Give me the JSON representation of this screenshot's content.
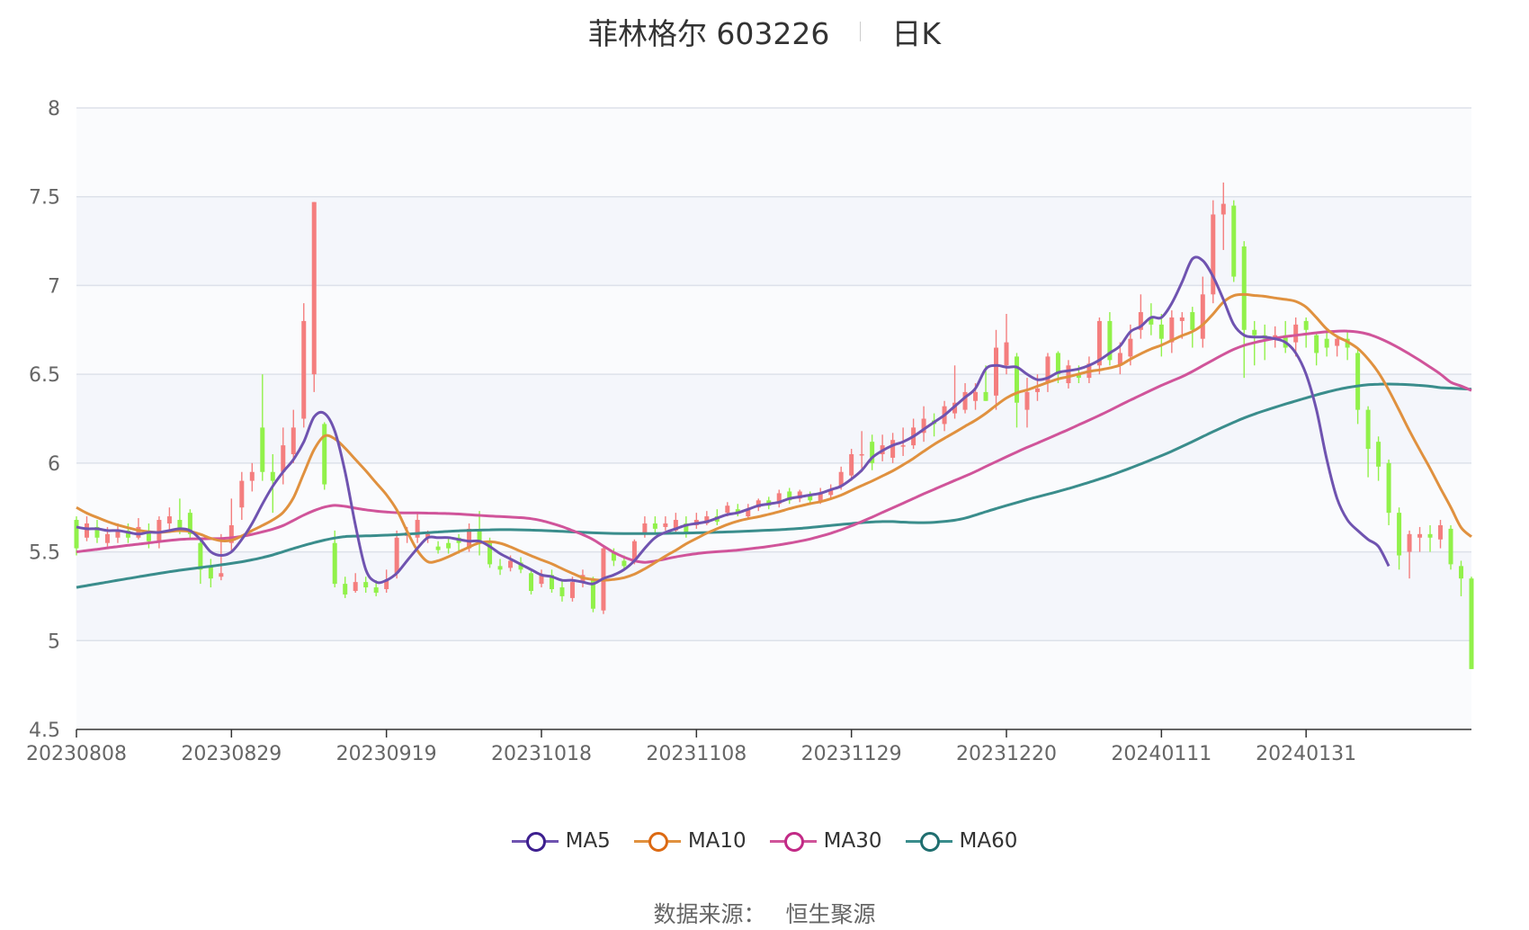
{
  "header": {
    "title": "菲林格尔 603226",
    "subtitle": "日K"
  },
  "footer": {
    "source_label": "数据来源：",
    "source_value": "恒生聚源"
  },
  "legend": [
    {
      "name": "MA5",
      "color": "#6f53b0",
      "marker": "#3d1f8f"
    },
    {
      "name": "MA10",
      "color": "#e0913f",
      "marker": "#dc6a13"
    },
    {
      "name": "MA30",
      "color": "#d0549a",
      "marker": "#c22a86"
    },
    {
      "name": "MA60",
      "color": "#3a8d8c",
      "marker": "#1f6e6f"
    }
  ],
  "colors": {
    "up": "#f47e7e",
    "down": "#91f14a",
    "grid": "#dde1ea",
    "band": "#f4f6fb",
    "axis": "#333333"
  },
  "chart_data": {
    "type": "candlestick",
    "y_range": [
      4.5,
      8
    ],
    "y_ticks": [
      "4.5",
      "5",
      "5.5",
      "6",
      "6.5",
      "7",
      "7.5",
      "8"
    ],
    "x_ticks": [
      "20230808",
      "20230829",
      "20230919",
      "20231018",
      "20231108",
      "20231129",
      "20231220",
      "20240111",
      "20240131"
    ],
    "x_tick_index": [
      0,
      15,
      30,
      45,
      60,
      75,
      90,
      105,
      119
    ],
    "candles": [
      [
        5.68,
        5.52,
        5.7,
        5.48
      ],
      [
        5.58,
        5.66,
        5.7,
        5.56
      ],
      [
        5.64,
        5.58,
        5.68,
        5.55
      ],
      [
        5.55,
        5.6,
        5.64,
        5.53
      ],
      [
        5.58,
        5.62,
        5.66,
        5.55
      ],
      [
        5.62,
        5.58,
        5.66,
        5.55
      ],
      [
        5.58,
        5.64,
        5.69,
        5.57
      ],
      [
        5.62,
        5.56,
        5.66,
        5.52
      ],
      [
        5.56,
        5.68,
        5.7,
        5.52
      ],
      [
        5.66,
        5.7,
        5.75,
        5.62
      ],
      [
        5.68,
        5.63,
        5.8,
        5.6
      ],
      [
        5.72,
        5.6,
        5.74,
        5.58
      ],
      [
        5.55,
        5.4,
        5.58,
        5.32
      ],
      [
        5.42,
        5.35,
        5.46,
        5.3
      ],
      [
        5.36,
        5.38,
        5.6,
        5.34
      ],
      [
        5.55,
        5.65,
        5.8,
        5.5
      ],
      [
        5.75,
        5.9,
        5.95,
        5.68
      ],
      [
        5.9,
        5.95,
        6.0,
        5.84
      ],
      [
        6.2,
        5.95,
        6.5,
        5.9
      ],
      [
        5.95,
        5.9,
        6.05,
        5.72
      ],
      [
        5.95,
        6.1,
        6.2,
        5.88
      ],
      [
        6.05,
        6.2,
        6.3,
        6.0
      ],
      [
        6.25,
        6.8,
        6.9,
        6.2
      ],
      [
        6.5,
        7.47,
        7.47,
        6.4
      ],
      [
        6.22,
        5.88,
        6.23,
        5.85
      ],
      [
        5.55,
        5.32,
        5.62,
        5.3
      ],
      [
        5.32,
        5.26,
        5.36,
        5.24
      ],
      [
        5.28,
        5.33,
        5.38,
        5.27
      ],
      [
        5.33,
        5.3,
        5.36,
        5.27
      ],
      [
        5.3,
        5.27,
        5.34,
        5.25
      ],
      [
        5.29,
        5.34,
        5.4,
        5.27
      ],
      [
        5.38,
        5.58,
        5.62,
        5.35
      ],
      [
        5.59,
        5.61,
        5.64,
        5.55
      ],
      [
        5.58,
        5.68,
        5.72,
        5.55
      ],
      [
        5.58,
        5.6,
        5.62,
        5.55
      ],
      [
        5.53,
        5.51,
        5.56,
        5.49
      ],
      [
        5.55,
        5.52,
        5.58,
        5.49
      ],
      [
        5.58,
        5.55,
        5.6,
        5.49
      ],
      [
        5.52,
        5.63,
        5.66,
        5.5
      ],
      [
        5.62,
        5.55,
        5.73,
        5.48
      ],
      [
        5.55,
        5.43,
        5.58,
        5.41
      ],
      [
        5.42,
        5.4,
        5.46,
        5.37
      ],
      [
        5.41,
        5.45,
        5.48,
        5.39
      ],
      [
        5.44,
        5.4,
        5.47,
        5.38
      ],
      [
        5.38,
        5.28,
        5.4,
        5.26
      ],
      [
        5.32,
        5.37,
        5.4,
        5.3
      ],
      [
        5.37,
        5.29,
        5.4,
        5.27
      ],
      [
        5.3,
        5.25,
        5.34,
        5.22
      ],
      [
        5.24,
        5.33,
        5.36,
        5.22
      ],
      [
        5.33,
        5.37,
        5.4,
        5.3
      ],
      [
        5.34,
        5.18,
        5.36,
        5.16
      ],
      [
        5.17,
        5.52,
        5.53,
        5.15
      ],
      [
        5.5,
        5.45,
        5.52,
        5.42
      ],
      [
        5.45,
        5.42,
        5.48,
        5.4
      ],
      [
        5.44,
        5.56,
        5.57,
        5.43
      ],
      [
        5.6,
        5.66,
        5.7,
        5.58
      ],
      [
        5.66,
        5.63,
        5.7,
        5.6
      ],
      [
        5.64,
        5.66,
        5.7,
        5.62
      ],
      [
        5.62,
        5.68,
        5.72,
        5.6
      ],
      [
        5.66,
        5.6,
        5.7,
        5.58
      ],
      [
        5.65,
        5.68,
        5.72,
        5.63
      ],
      [
        5.66,
        5.7,
        5.73,
        5.65
      ],
      [
        5.7,
        5.67,
        5.74,
        5.65
      ],
      [
        5.72,
        5.76,
        5.78,
        5.7
      ],
      [
        5.74,
        5.72,
        5.77,
        5.7
      ],
      [
        5.7,
        5.74,
        5.77,
        5.68
      ],
      [
        5.75,
        5.79,
        5.8,
        5.73
      ],
      [
        5.79,
        5.76,
        5.81,
        5.74
      ],
      [
        5.77,
        5.83,
        5.85,
        5.75
      ],
      [
        5.84,
        5.79,
        5.86,
        5.77
      ],
      [
        5.8,
        5.84,
        5.85,
        5.78
      ],
      [
        5.82,
        5.79,
        5.84,
        5.77
      ],
      [
        5.78,
        5.83,
        5.86,
        5.77
      ],
      [
        5.82,
        5.85,
        5.88,
        5.8
      ],
      [
        5.87,
        5.95,
        5.98,
        5.85
      ],
      [
        5.93,
        6.05,
        6.08,
        5.9
      ],
      [
        6.05,
        6.05,
        6.18,
        5.95
      ],
      [
        6.12,
        6.0,
        6.16,
        5.96
      ],
      [
        6.05,
        6.1,
        6.16,
        6.01
      ],
      [
        6.03,
        6.13,
        6.17,
        6.0
      ],
      [
        6.1,
        6.1,
        6.2,
        6.04
      ],
      [
        6.1,
        6.2,
        6.25,
        6.08
      ],
      [
        6.17,
        6.25,
        6.32,
        6.12
      ],
      [
        6.24,
        6.22,
        6.28,
        6.15
      ],
      [
        6.22,
        6.32,
        6.35,
        6.18
      ],
      [
        6.28,
        6.34,
        6.55,
        6.25
      ],
      [
        6.3,
        6.4,
        6.45,
        6.28
      ],
      [
        6.35,
        6.4,
        6.45,
        6.3
      ],
      [
        6.4,
        6.35,
        6.55,
        6.35
      ],
      [
        6.38,
        6.65,
        6.75,
        6.3
      ],
      [
        6.55,
        6.68,
        6.84,
        6.5
      ],
      [
        6.6,
        6.34,
        6.62,
        6.2
      ],
      [
        6.3,
        6.4,
        6.48,
        6.2
      ],
      [
        6.4,
        6.42,
        6.5,
        6.35
      ],
      [
        6.45,
        6.6,
        6.62,
        6.4
      ],
      [
        6.62,
        6.5,
        6.63,
        6.45
      ],
      [
        6.45,
        6.55,
        6.58,
        6.42
      ],
      [
        6.5,
        6.48,
        6.55,
        6.45
      ],
      [
        6.48,
        6.56,
        6.6,
        6.45
      ],
      [
        6.55,
        6.8,
        6.82,
        6.5
      ],
      [
        6.8,
        6.58,
        6.85,
        6.55
      ],
      [
        6.55,
        6.62,
        6.68,
        6.5
      ],
      [
        6.6,
        6.7,
        6.78,
        6.55
      ],
      [
        6.75,
        6.85,
        6.95,
        6.7
      ],
      [
        6.82,
        6.78,
        6.9,
        6.72
      ],
      [
        6.78,
        6.7,
        6.84,
        6.6
      ],
      [
        6.68,
        6.82,
        6.86,
        6.62
      ],
      [
        6.8,
        6.82,
        6.85,
        6.7
      ],
      [
        6.85,
        6.75,
        6.88,
        6.65
      ],
      [
        6.7,
        6.95,
        7.05,
        6.65
      ],
      [
        6.95,
        7.4,
        7.48,
        6.9
      ],
      [
        7.4,
        7.46,
        7.58,
        7.2
      ],
      [
        7.45,
        7.05,
        7.48,
        7.02
      ],
      [
        7.22,
        6.75,
        7.25,
        6.48
      ],
      [
        6.75,
        6.72,
        6.8,
        6.55
      ],
      [
        6.72,
        6.7,
        6.78,
        6.58
      ],
      [
        6.7,
        6.72,
        6.77,
        6.65
      ],
      [
        6.72,
        6.65,
        6.8,
        6.62
      ],
      [
        6.68,
        6.78,
        6.82,
        6.6
      ],
      [
        6.8,
        6.75,
        6.82,
        6.65
      ],
      [
        6.72,
        6.62,
        6.73,
        6.55
      ],
      [
        6.7,
        6.65,
        6.75,
        6.6
      ],
      [
        6.66,
        6.7,
        6.72,
        6.6
      ],
      [
        6.7,
        6.65,
        6.74,
        6.58
      ],
      [
        6.62,
        6.3,
        6.65,
        6.22
      ],
      [
        6.3,
        6.08,
        6.32,
        5.92
      ],
      [
        6.12,
        5.98,
        6.15,
        5.9
      ],
      [
        6.0,
        5.72,
        6.02,
        5.65
      ],
      [
        5.72,
        5.48,
        5.75,
        5.4
      ],
      [
        5.5,
        5.6,
        5.62,
        5.35
      ],
      [
        5.58,
        5.6,
        5.64,
        5.5
      ],
      [
        5.6,
        5.58,
        5.65,
        5.5
      ],
      [
        5.57,
        5.65,
        5.68,
        5.52
      ],
      [
        5.63,
        5.43,
        5.65,
        5.4
      ],
      [
        5.42,
        5.35,
        5.45,
        5.25
      ],
      [
        5.35,
        4.84,
        5.36,
        4.84
      ]
    ],
    "ma": {
      "MA5": [
        5.64,
        5.63,
        5.63,
        5.62,
        5.62,
        5.61,
        5.6,
        5.61,
        5.61,
        5.62,
        5.63,
        5.62,
        5.57,
        5.5,
        5.48,
        5.5,
        5.57,
        5.66,
        5.77,
        5.87,
        5.95,
        6.02,
        6.12,
        6.26,
        6.28,
        6.18,
        5.95,
        5.65,
        5.4,
        5.33,
        5.34,
        5.38,
        5.45,
        5.52,
        5.58,
        5.58,
        5.58,
        5.57,
        5.56,
        5.56,
        5.53,
        5.49,
        5.46,
        5.43,
        5.4,
        5.37,
        5.36,
        5.34,
        5.34,
        5.33,
        5.32,
        5.35,
        5.37,
        5.4,
        5.45,
        5.52,
        5.58,
        5.61,
        5.63,
        5.65,
        5.66,
        5.67,
        5.69,
        5.71,
        5.72,
        5.74,
        5.76,
        5.77,
        5.78,
        5.8,
        5.81,
        5.82,
        5.83,
        5.85,
        5.87,
        5.91,
        5.96,
        6.03,
        6.07,
        6.1,
        6.12,
        6.15,
        6.19,
        6.23,
        6.27,
        6.32,
        6.37,
        6.42,
        6.53,
        6.55,
        6.54,
        6.54,
        6.5,
        6.47,
        6.48,
        6.51,
        6.52,
        6.53,
        6.55,
        6.58,
        6.62,
        6.66,
        6.74,
        6.77,
        6.82,
        6.82,
        6.9,
        7.02,
        7.15,
        7.14,
        7.05,
        6.92,
        6.78,
        6.72,
        6.71,
        6.71,
        6.7,
        6.68,
        6.62,
        6.5,
        6.3,
        6.02,
        5.8,
        5.68,
        5.62,
        5.57,
        5.53,
        5.42
      ]
    }
  }
}
